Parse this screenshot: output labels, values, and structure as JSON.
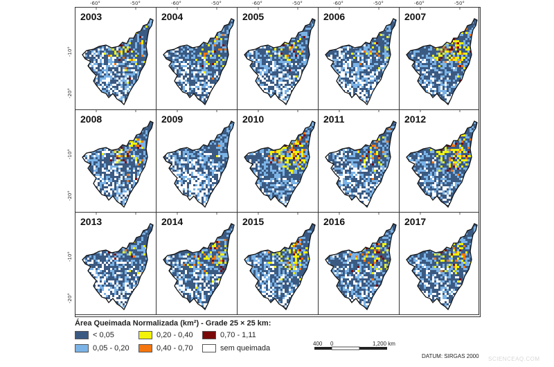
{
  "panels": [
    {
      "year": "2003",
      "intensity": 0.35
    },
    {
      "year": "2004",
      "intensity": 0.45
    },
    {
      "year": "2005",
      "intensity": 0.35
    },
    {
      "year": "2006",
      "intensity": 0.25
    },
    {
      "year": "2007",
      "intensity": 0.85
    },
    {
      "year": "2008",
      "intensity": 0.4
    },
    {
      "year": "2009",
      "intensity": 0.1
    },
    {
      "year": "2010",
      "intensity": 0.95
    },
    {
      "year": "2011",
      "intensity": 0.4
    },
    {
      "year": "2012",
      "intensity": 0.85
    },
    {
      "year": "2013",
      "intensity": 0.2
    },
    {
      "year": "2014",
      "intensity": 0.5
    },
    {
      "year": "2015",
      "intensity": 0.6
    },
    {
      "year": "2016",
      "intensity": 0.55
    },
    {
      "year": "2017",
      "intensity": 0.55
    }
  ],
  "lon_ticks": [
    "-60°",
    "-50°"
  ],
  "lat_ticks": [
    "-10°",
    "-20°"
  ],
  "legend": {
    "title": "Área Queimada Normalizada (km²) - Grade 25 × 25 km:",
    "items": [
      {
        "label": "< 0,05",
        "color": "#3b5a82"
      },
      {
        "label": "0,05 - 0,20",
        "color": "#7bb3e6"
      },
      {
        "label": "0,20 - 0,40",
        "color": "#f2f20a"
      },
      {
        "label": "0,40 - 0,70",
        "color": "#f5760f"
      },
      {
        "label": "0,70 - 1,11",
        "color": "#7a0a0a"
      },
      {
        "label": "sem queimada",
        "color": "#ffffff"
      }
    ]
  },
  "scale": {
    "left_label": "400",
    "zero_label": "0",
    "right_label": "1,200 km"
  },
  "datum": "DATUM: SIRGAS 2000",
  "watermark": "SCIENCEAQ.COM"
}
